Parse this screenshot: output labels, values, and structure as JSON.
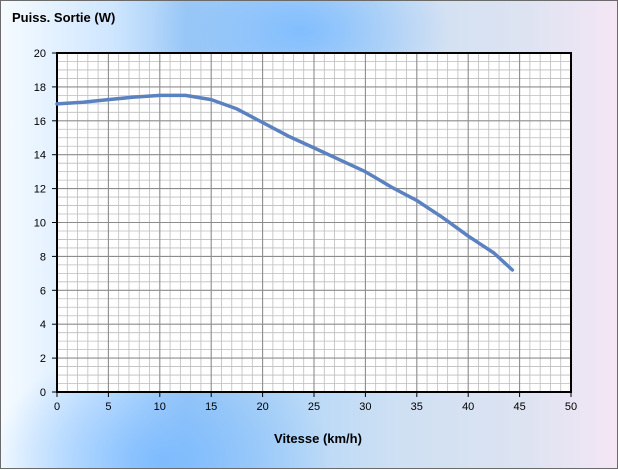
{
  "chart_data": {
    "type": "line",
    "title": "",
    "ylabel": "Puiss. Sortie (W)",
    "xlabel": "Vitesse (km/h)",
    "xlim": [
      0,
      50
    ],
    "ylim": [
      0,
      20
    ],
    "x_ticks": [
      0,
      5,
      10,
      15,
      20,
      25,
      30,
      35,
      40,
      45,
      50
    ],
    "y_ticks": [
      0,
      2,
      4,
      6,
      8,
      10,
      12,
      14,
      16,
      18,
      20
    ],
    "grid": true,
    "legend": "none",
    "series": [
      {
        "color": "#5b82c0",
        "points": [
          [
            0,
            17.0
          ],
          [
            2.5,
            17.1
          ],
          [
            5,
            17.25
          ],
          [
            7.5,
            17.4
          ],
          [
            10,
            17.5
          ],
          [
            12.5,
            17.5
          ],
          [
            15,
            17.25
          ],
          [
            17.5,
            16.7
          ],
          [
            20,
            15.9
          ],
          [
            22.5,
            15.1
          ],
          [
            25,
            14.4
          ],
          [
            27.5,
            13.7
          ],
          [
            30,
            13.0
          ],
          [
            32.5,
            12.1
          ],
          [
            35,
            11.3
          ],
          [
            37.5,
            10.3
          ],
          [
            40,
            9.2
          ],
          [
            42.5,
            8.2
          ],
          [
            44.3,
            7.2
          ]
        ]
      }
    ]
  },
  "colors": {
    "line": "#5b82c0",
    "major_grid": "#8c8c8c",
    "minor_grid": "#bdbdbd",
    "plot_bg": "#ffffff"
  }
}
